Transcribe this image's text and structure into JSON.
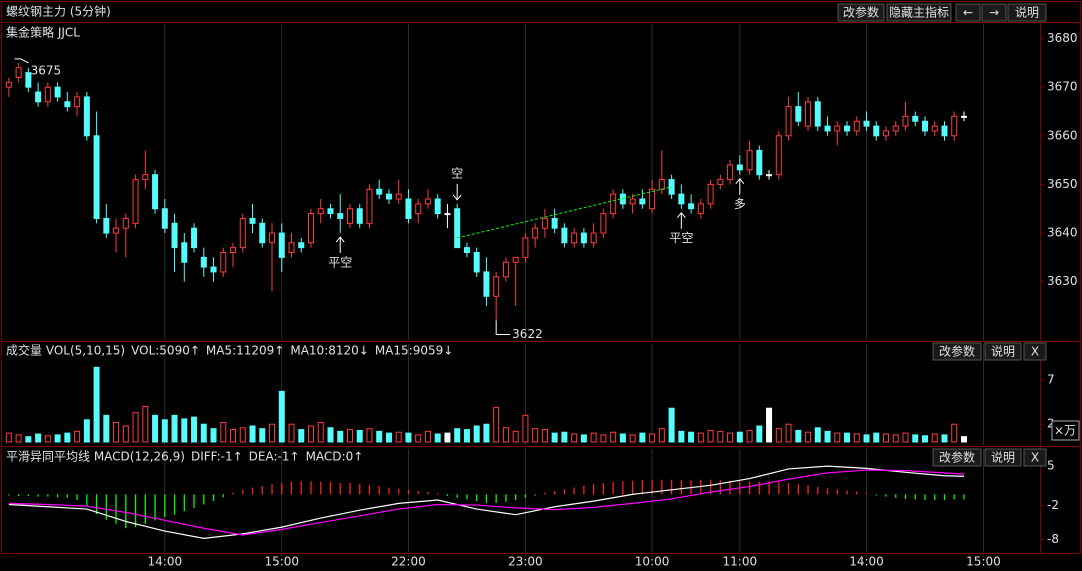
{
  "chart_data": [
    {
      "type": "candlestick",
      "title": "螺纹钢主力 (5分钟)",
      "subtitle": "集金策略 JJCL",
      "buttons": [
        "改参数",
        "隐藏主指标",
        "←",
        "→",
        "说明"
      ],
      "up_color": "#ff3c3c",
      "down_color": "#54fcfc",
      "ylim": [
        3618,
        3683
      ],
      "yticks": [
        3630,
        3640,
        3650,
        3660,
        3670,
        3680
      ],
      "open": [
        3670,
        3672,
        3673,
        3669,
        3667,
        3670,
        3667,
        3666,
        3668,
        3660,
        3643,
        3640,
        3641,
        3642,
        3651,
        3652,
        3645,
        3642,
        3638,
        3641,
        3635,
        3633,
        3632,
        3636,
        3637,
        3643,
        3642,
        3638,
        3640,
        3636,
        3638,
        3638,
        3644,
        3645,
        3644,
        3642,
        3645,
        3642,
        3649,
        3648,
        3647,
        3647,
        3644,
        3646,
        3647,
        3644,
        3645,
        3637,
        3636,
        3632,
        3627,
        3631,
        3634,
        3635,
        3639,
        3641,
        3643,
        3641,
        3638,
        3640,
        3638,
        3640,
        3644,
        3648,
        3646,
        3647,
        3645,
        3649,
        3651,
        3648,
        3646,
        3644,
        3646,
        3650,
        3651,
        3654,
        3653,
        3657,
        3652,
        3652,
        3660,
        3666,
        3662,
        3667,
        3662,
        3661,
        3662,
        3661,
        3663,
        3662,
        3660,
        3661,
        3662,
        3664,
        3663,
        3661,
        3662,
        3660,
        3664
      ],
      "high": [
        3672,
        3675,
        3674,
        3671,
        3671,
        3671,
        3669,
        3669,
        3669,
        3665,
        3646,
        3643,
        3644,
        3652,
        3657,
        3653,
        3647,
        3644,
        3640,
        3642,
        3637,
        3635,
        3637,
        3638,
        3644,
        3646,
        3643,
        3642,
        3642,
        3640,
        3639,
        3645,
        3647,
        3646,
        3648,
        3646,
        3646,
        3650,
        3651,
        3649,
        3651,
        3649,
        3647,
        3649,
        3648,
        3646,
        3646,
        3638,
        3637,
        3635,
        3632,
        3635,
        3635,
        3640,
        3642,
        3645,
        3645,
        3642,
        3641,
        3641,
        3642,
        3645,
        3649,
        3649,
        3648,
        3649,
        3651,
        3657,
        3652,
        3650,
        3648,
        3647,
        3651,
        3652,
        3655,
        3656,
        3659,
        3658,
        3653,
        3661,
        3668,
        3669,
        3668,
        3668,
        3664,
        3663,
        3663,
        3664,
        3665,
        3663,
        3662,
        3663,
        3667,
        3665,
        3664,
        3663,
        3663,
        3665,
        3665
      ],
      "low": [
        3668,
        3671,
        3669,
        3666,
        3666,
        3667,
        3665,
        3664,
        3659,
        3642,
        3639,
        3636,
        3635,
        3641,
        3649,
        3644,
        3640,
        3632,
        3630,
        3636,
        3631,
        3630,
        3631,
        3633,
        3636,
        3640,
        3637,
        3628,
        3632,
        3635,
        3636,
        3637,
        3642,
        3643,
        3640,
        3641,
        3641,
        3641,
        3647,
        3646,
        3646,
        3642,
        3642,
        3645,
        3643,
        3641,
        3637,
        3635,
        3631,
        3625,
        3622,
        3630,
        3625,
        3634,
        3637,
        3639,
        3640,
        3637,
        3637,
        3637,
        3637,
        3639,
        3643,
        3645,
        3644,
        3645,
        3644,
        3648,
        3647,
        3645,
        3644,
        3643,
        3645,
        3649,
        3650,
        3652,
        3652,
        3651,
        3651,
        3651,
        3659,
        3662,
        3661,
        3661,
        3660,
        3658,
        3660,
        3660,
        3661,
        3659,
        3659,
        3660,
        3661,
        3662,
        3660,
        3660,
        3659,
        3659,
        3663
      ],
      "close": [
        3671,
        3674,
        3670,
        3667,
        3670,
        3668,
        3666,
        3668,
        3660,
        3643,
        3640,
        3641,
        3643,
        3651,
        3652,
        3645,
        3641,
        3637,
        3634,
        3637,
        3633,
        3632,
        3636,
        3637,
        3643,
        3642,
        3638,
        3640,
        3635,
        3638,
        3637,
        3644,
        3645,
        3644,
        3643,
        3645,
        3642,
        3649,
        3648,
        3647,
        3648,
        3643,
        3646,
        3647,
        3644,
        3644,
        3637,
        3636,
        3632,
        3627,
        3631,
        3634,
        3635,
        3639,
        3641,
        3643,
        3641,
        3638,
        3640,
        3638,
        3640,
        3644,
        3648,
        3646,
        3647,
        3646,
        3649,
        3651,
        3648,
        3646,
        3645,
        3646,
        3650,
        3651,
        3654,
        3653,
        3657,
        3652,
        3652,
        3660,
        3666,
        3663,
        3667,
        3662,
        3661,
        3662,
        3661,
        3663,
        3662,
        3660,
        3661,
        3662,
        3664,
        3663,
        3661,
        3662,
        3660,
        3664,
        3664
      ],
      "annotations": [
        {
          "text": "3675",
          "x": 1,
          "position": "high",
          "color": "#ffffff"
        },
        {
          "text": "3622",
          "x": 50,
          "position": "low",
          "color": "#ffffff"
        },
        {
          "text": "空",
          "x": 46,
          "position": "above",
          "color": "#00ff00"
        },
        {
          "text": "平空",
          "x": 34,
          "position": "below",
          "color": "#ff3c3c"
        },
        {
          "text": "平空",
          "x": 69,
          "position": "below",
          "color": "#ff3c3c"
        },
        {
          "text": "多",
          "x": 75,
          "position": "below",
          "color": "#ff3c3c"
        }
      ],
      "trendline": {
        "x": [
          46,
          68
        ],
        "values": [
          3639,
          3649.5
        ],
        "color": "#00ff00"
      }
    },
    {
      "type": "bar",
      "title": "成交量 VOL(5,10,15)",
      "indicators": [
        {
          "name": "VOL:5090↑",
          "color": "#ffffff"
        },
        {
          "name": "MA5:11209↑",
          "color": "#ff00ff"
        },
        {
          "name": "MA10:8120↓",
          "color": "#00ff00"
        },
        {
          "name": "MA15:9059↓",
          "color": "#3c3cff"
        }
      ],
      "buttons": [
        "改参数",
        "说明",
        "X"
      ],
      "unit": "×万",
      "ylim": [
        0,
        9
      ],
      "yticks": [
        2,
        7
      ],
      "values": [
        1.0,
        0.8,
        0.6,
        0.9,
        0.7,
        0.8,
        1.0,
        1.2,
        2.5,
        8.4,
        3.0,
        2.2,
        1.8,
        3.3,
        4.0,
        3.0,
        2.5,
        3.0,
        2.6,
        2.8,
        2.0,
        1.5,
        2.2,
        1.4,
        1.6,
        1.8,
        1.5,
        2.0,
        5.7,
        2.0,
        1.4,
        1.8,
        2.2,
        1.6,
        1.2,
        1.4,
        1.3,
        1.5,
        1.2,
        1.0,
        1.1,
        1.0,
        0.8,
        1.2,
        0.9,
        1.0,
        1.5,
        1.4,
        1.8,
        2.0,
        3.9,
        1.6,
        1.2,
        3.0,
        1.5,
        1.4,
        1.0,
        1.1,
        0.9,
        0.8,
        1.0,
        0.8,
        1.1,
        0.9,
        0.8,
        1.0,
        0.9,
        1.5,
        3.8,
        1.2,
        1.1,
        1.0,
        1.3,
        1.2,
        1.0,
        1.1,
        1.3,
        1.8,
        3.8,
        1.5,
        2.0,
        1.3,
        1.1,
        1.6,
        1.2,
        1.0,
        1.0,
        0.9,
        0.8,
        1.0,
        0.9,
        0.8,
        1.0,
        0.8,
        0.7,
        0.9,
        0.8,
        2.0,
        0.6
      ]
    },
    {
      "type": "line",
      "title": "平滑异同平均线 MACD(12,26,9)",
      "buttons": [
        "改参数",
        "说明",
        "X"
      ],
      "ylim": [
        -9.5,
        7.5
      ],
      "yticks": [
        -8,
        -2,
        5
      ],
      "xlim": [
        -0.5,
        105.8
      ],
      "xticks": [
        {
          "value": 16,
          "label": "14:00"
        },
        {
          "value": 28,
          "label": "15:00"
        },
        {
          "value": 41,
          "label": "22:00"
        },
        {
          "value": 53,
          "label": "23:00"
        },
        {
          "value": 66,
          "label": "10:00"
        },
        {
          "value": 75,
          "label": "11:00"
        },
        {
          "value": 88,
          "label": "14:00"
        },
        {
          "value": 100,
          "label": "15:00"
        }
      ],
      "series": [
        {
          "name": "DIFF:-1↑",
          "color": "#ffffff",
          "x": [
            0,
            4,
            8,
            12,
            16,
            20,
            24,
            28,
            32,
            36,
            40,
            44,
            48,
            52,
            56,
            60,
            64,
            68,
            72,
            76,
            80,
            84,
            88,
            92,
            96,
            98
          ],
          "values": [
            -1.8,
            -2.2,
            -2.6,
            -4.8,
            -6.5,
            -7.8,
            -7.0,
            -5.8,
            -4.2,
            -2.8,
            -1.6,
            -1.0,
            -2.6,
            -3.6,
            -2.2,
            -1.2,
            0.0,
            0.8,
            1.6,
            2.8,
            4.5,
            5.0,
            4.6,
            3.9,
            3.3,
            3.2
          ]
        },
        {
          "name": "DEA:-1↑",
          "color": "#ff00ff",
          "x": [
            0,
            4,
            8,
            12,
            16,
            20,
            24,
            28,
            32,
            36,
            40,
            44,
            48,
            52,
            56,
            60,
            64,
            68,
            72,
            76,
            80,
            84,
            88,
            92,
            96,
            98
          ],
          "values": [
            -1.6,
            -1.8,
            -2.1,
            -3.2,
            -4.6,
            -6.0,
            -7.2,
            -6.2,
            -5.0,
            -3.8,
            -2.6,
            -1.8,
            -1.9,
            -2.4,
            -2.7,
            -2.3,
            -1.6,
            -0.8,
            0.4,
            1.4,
            2.7,
            3.8,
            4.3,
            4.2,
            3.8,
            3.6
          ]
        },
        {
          "name": "MACD:0↑",
          "color": "#00ff00",
          "up_color": "#ff2020",
          "kind": "bar",
          "values": [
            -0.2,
            -0.3,
            -0.3,
            -0.4,
            -0.4,
            -0.5,
            -0.6,
            -1.0,
            -2.0,
            -3.5,
            -4.5,
            -5.2,
            -6.0,
            -5.8,
            -5.2,
            -4.6,
            -4.0,
            -3.6,
            -3.0,
            -2.4,
            -1.8,
            -1.2,
            -0.5,
            0.3,
            0.8,
            1.2,
            1.5,
            1.8,
            2.0,
            2.2,
            2.3,
            2.3,
            2.2,
            2.2,
            2.0,
            2.0,
            1.8,
            1.6,
            1.5,
            1.2,
            1.0,
            0.8,
            0.6,
            0.4,
            0.2,
            -0.3,
            -0.6,
            -0.9,
            -1.2,
            -1.5,
            -1.5,
            -1.3,
            -1.0,
            -0.6,
            -0.2,
            0.3,
            0.6,
            0.9,
            1.2,
            1.5,
            1.8,
            2.0,
            2.2,
            2.3,
            2.4,
            2.5,
            2.6,
            2.6,
            2.6,
            2.5,
            2.5,
            2.6,
            2.6,
            2.5,
            2.4,
            2.3,
            2.2,
            2.2,
            2.3,
            2.2,
            2.0,
            1.8,
            1.6,
            1.3,
            1.1,
            0.9,
            0.7,
            0.5,
            0.3,
            -0.2,
            -0.4,
            -0.6,
            -0.8,
            -0.9,
            -1.0,
            -1.0,
            -1.0,
            -0.9,
            -0.9
          ]
        }
      ]
    }
  ]
}
